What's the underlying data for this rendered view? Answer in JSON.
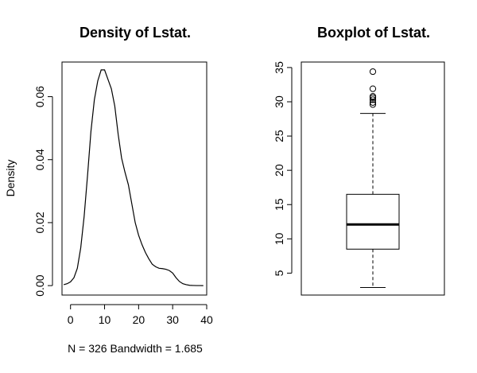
{
  "chart_data": [
    {
      "type": "line",
      "title": "Density of Lstat.",
      "xlabel": "N = 326   Bandwidth = 1.685",
      "ylabel": "Density",
      "xlim": [
        -2.5,
        40
      ],
      "ylim": [
        -0.003,
        0.071
      ],
      "xticks": [
        "0",
        "10",
        "20",
        "30",
        "40"
      ],
      "yticks": [
        "0.00",
        "0.02",
        "0.04",
        "0.06"
      ],
      "grid": false,
      "series": [
        {
          "x": [
            -2,
            -1,
            0,
            1,
            2,
            3,
            4,
            5,
            6,
            7,
            8,
            9,
            10,
            11,
            12,
            13,
            14,
            15,
            16,
            17,
            18,
            19,
            20,
            21,
            22,
            23,
            24,
            25,
            26,
            27,
            28,
            29,
            30,
            31,
            32,
            33,
            34,
            35,
            36,
            37,
            38,
            39
          ],
          "y": [
            0.0003,
            0.0006,
            0.0012,
            0.0025,
            0.0055,
            0.012,
            0.022,
            0.035,
            0.049,
            0.059,
            0.065,
            0.0685,
            0.0685,
            0.0655,
            0.0625,
            0.057,
            0.048,
            0.0405,
            0.036,
            0.032,
            0.026,
            0.02,
            0.016,
            0.013,
            0.0105,
            0.0085,
            0.0068,
            0.006,
            0.0055,
            0.0054,
            0.0052,
            0.0048,
            0.004,
            0.0025,
            0.0013,
            0.0006,
            0.0003,
            0.0001,
            5e-05,
            2e-05,
            1e-05,
            0
          ]
        }
      ]
    },
    {
      "type": "box",
      "title": "Boxplot of Lstat.",
      "ylim": [
        1.8,
        35.8
      ],
      "yticks": [
        "5",
        "10",
        "15",
        "20",
        "25",
        "30",
        "35"
      ],
      "grid": false,
      "box": {
        "min": 2.9,
        "q1": 8.5,
        "median": 12.1,
        "q3": 16.5,
        "max": 28.3,
        "outliers": [
          29.6,
          29.9,
          30.3,
          30.6,
          30.8,
          31.9,
          34.4
        ]
      }
    }
  ]
}
